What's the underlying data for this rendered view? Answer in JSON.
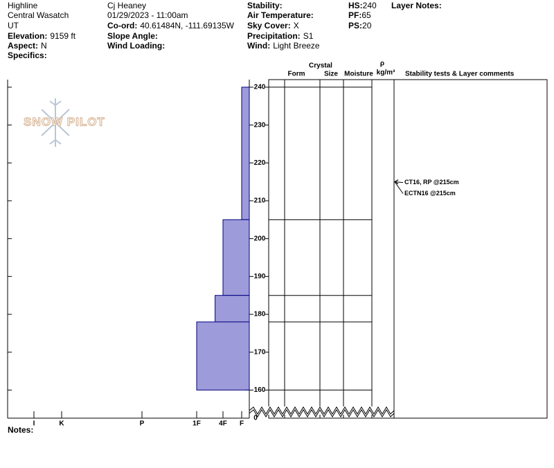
{
  "header": {
    "site": "Highline",
    "range": "Central Wasatch",
    "state": "UT",
    "elevation": {
      "label": "Elevation:",
      "value": "9159 ft"
    },
    "aspect": {
      "label": "Aspect:",
      "value": "N"
    },
    "specifics": {
      "label": "Specifics:"
    },
    "observer": "Cj Heaney",
    "datetime": "01/29/2023 - 11:00am",
    "coord": {
      "label": "Co-ord:",
      "value": "40.61484N, -111.69135W"
    },
    "slope_angle": {
      "label": "Slope Angle:"
    },
    "wind_loading": {
      "label": "Wind Loading:"
    },
    "stability": {
      "label": "Stability:"
    },
    "air_temperature": {
      "label": "Air Temperature:"
    },
    "sky_cover": {
      "label": "Sky Cover:",
      "value": "X"
    },
    "precipitation": {
      "label": "Precipitation:",
      "value": "S1"
    },
    "wind": {
      "label": "Wind:",
      "value": "Light Breeze"
    },
    "hs": {
      "label": "HS:",
      "value": 240
    },
    "pf": {
      "label": "PF:",
      "value": 65
    },
    "ps": {
      "label": "PS:",
      "value": 20
    },
    "layer_notes": {
      "label": "Layer Notes:"
    }
  },
  "logo": "SNOW PILOT",
  "notes": {
    "label": "Notes:"
  },
  "chart_data": {
    "type": "snowpit",
    "columns": {
      "crystal": "Crystal",
      "form": "Form",
      "size": "Size",
      "moisture": "Moisture",
      "rho": "ρ",
      "density_unit": "kg/m³",
      "comments": "Stability tests & Layer comments"
    },
    "ylim": [
      155.5,
      242
    ],
    "yticks": [
      160,
      170,
      180,
      190,
      200,
      210,
      220,
      230,
      240
    ],
    "ybreak_ticks": [
      0
    ],
    "xticks": [
      {
        "value": 6,
        "label": "I"
      },
      {
        "value": 5,
        "label": "K"
      },
      {
        "value": 4,
        "label": "P"
      },
      {
        "value": 3,
        "label": "1F"
      },
      {
        "value": 2,
        "label": "4F"
      },
      {
        "value": 1,
        "label": "F"
      }
    ],
    "layer_color": "#9d9bd9",
    "layers": [
      {
        "top": 240,
        "bottom": 205,
        "hardness": 1
      },
      {
        "top": 205,
        "bottom": 185,
        "hardness": 2
      },
      {
        "top": 185,
        "bottom": 178,
        "hardness": 2.3
      },
      {
        "top": 178,
        "bottom": 160,
        "hardness": 3
      }
    ],
    "tests": [
      {
        "label": "CT16, RP @215cm",
        "depth": 215
      },
      {
        "label": "ECTN16 @215cm",
        "depth": 215
      }
    ]
  }
}
